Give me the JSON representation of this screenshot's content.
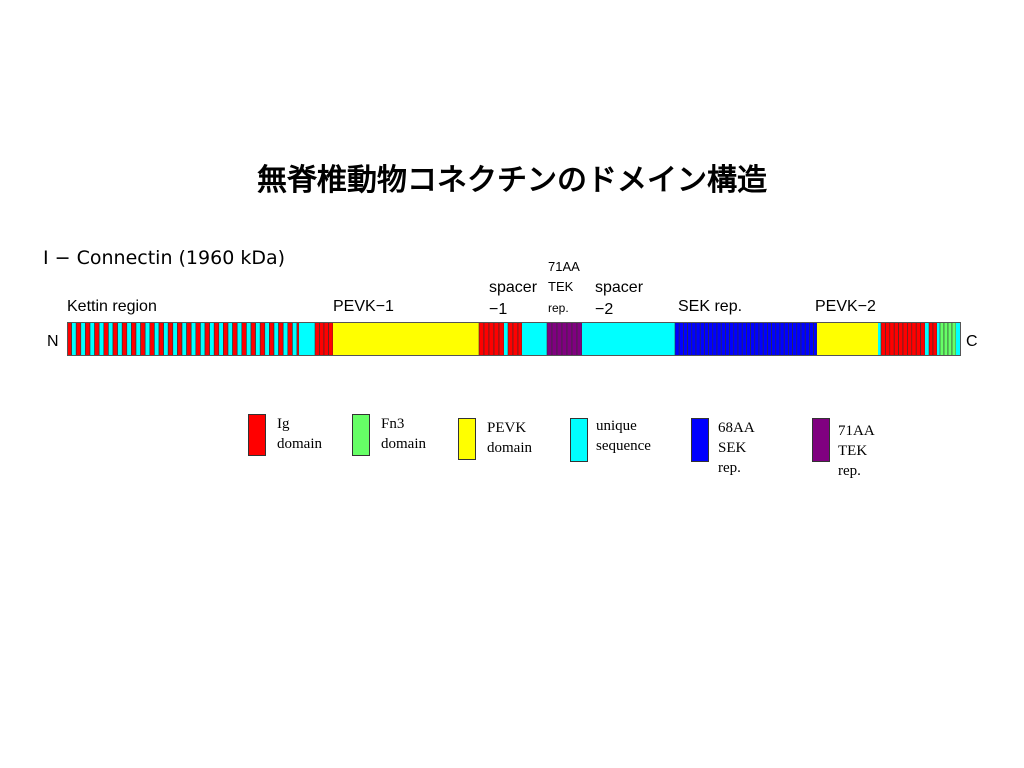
{
  "title": "無脊椎動物コネクチンのドメイン構造",
  "subtitle": "I − Connectin (1960 kDa)",
  "region_labels": {
    "kettin": "Kettin region",
    "pevk1": "PEVK−1",
    "spacer1_line1": "spacer",
    "spacer1_line2": "−1",
    "tek_line1": "71AA",
    "tek_line2": "TEK",
    "tek_line3": "rep.",
    "spacer2_line1": "spacer",
    "spacer2_line2": "−2",
    "sek": "SEK rep.",
    "pevk2": "PEVK−2"
  },
  "ends": {
    "n": "N",
    "c": "C"
  },
  "colors": {
    "ig": "#ff0000",
    "fn3": "#66ff66",
    "pevk": "#ffff00",
    "unique": "#00ffff",
    "sek": "#0000ff",
    "tek": "#800080",
    "stroke": "#333333"
  },
  "legend": [
    {
      "color": "#ff0000",
      "line1": "Ig",
      "line2": "domain"
    },
    {
      "color": "#66ff66",
      "line1": "Fn3",
      "line2": "domain"
    },
    {
      "color": "#ffff00",
      "line1": "PEVK",
      "line2": "domain"
    },
    {
      "color": "#00ffff",
      "line1": "unique",
      "line2": "sequence"
    },
    {
      "color": "#0000ff",
      "line1": "68AA",
      "line2": "SEK rep."
    },
    {
      "color": "#800080",
      "line1": "71AA",
      "line2": "TEK rep."
    }
  ]
}
